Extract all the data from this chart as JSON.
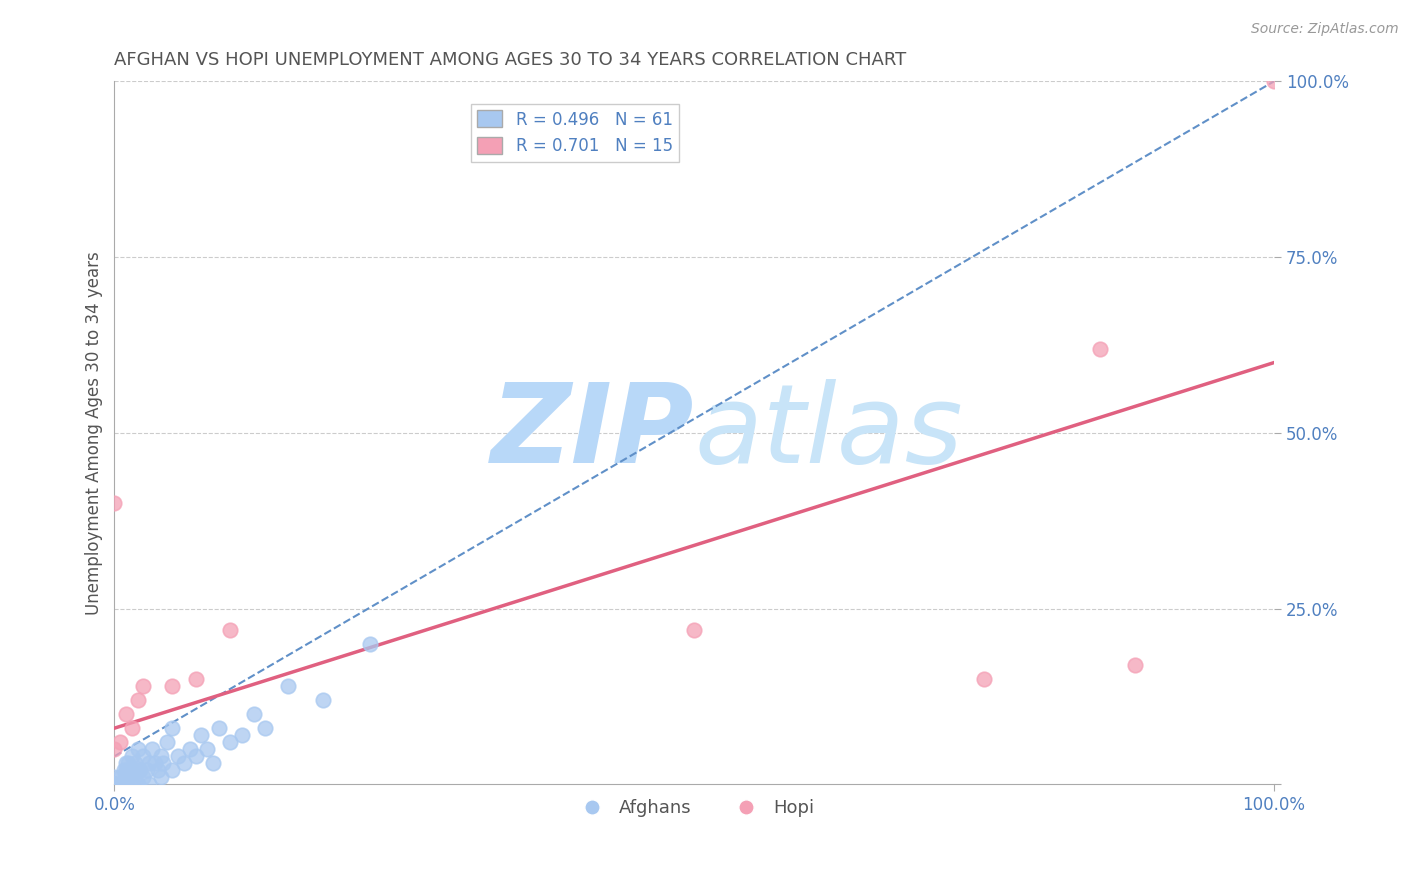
{
  "title": "AFGHAN VS HOPI UNEMPLOYMENT AMONG AGES 30 TO 34 YEARS CORRELATION CHART",
  "source": "Source: ZipAtlas.com",
  "ylabel": "Unemployment Among Ages 30 to 34 years",
  "xlim": [
    0,
    1.0
  ],
  "ylim": [
    0,
    1.0
  ],
  "xticks": [
    0.0,
    1.0
  ],
  "yticks": [
    0.0,
    0.25,
    0.5,
    0.75,
    1.0
  ],
  "xtick_labels": [
    "0.0%",
    "100.0%"
  ],
  "ytick_labels": [
    "",
    "25.0%",
    "50.0%",
    "75.0%",
    "100.0%"
  ],
  "afghan_color": "#a8c8f0",
  "hopi_color": "#f4a0b5",
  "afghan_line_color": "#6090c8",
  "hopi_line_color": "#e06080",
  "afghan_R": 0.496,
  "afghan_N": 61,
  "hopi_R": 0.701,
  "hopi_N": 15,
  "legend_label_afghan": "Afghans",
  "legend_label_hopi": "Hopi",
  "background_color": "#ffffff",
  "grid_color": "#cccccc",
  "title_color": "#555555",
  "axis_label_color": "#555555",
  "tick_label_color": "#5080c0",
  "watermark_zip_color": "#b8d8f8",
  "watermark_atlas_color": "#c8e4f8",
  "afghan_x": [
    0.0,
    0.0,
    0.0,
    0.0,
    0.0,
    0.0,
    0.0,
    0.0,
    0.0,
    0.0,
    0.0,
    0.0,
    0.0,
    0.005,
    0.005,
    0.005,
    0.008,
    0.008,
    0.01,
    0.01,
    0.01,
    0.012,
    0.012,
    0.015,
    0.015,
    0.015,
    0.018,
    0.018,
    0.02,
    0.02,
    0.02,
    0.022,
    0.025,
    0.025,
    0.028,
    0.03,
    0.03,
    0.032,
    0.035,
    0.038,
    0.04,
    0.04,
    0.042,
    0.045,
    0.05,
    0.05,
    0.055,
    0.06,
    0.065,
    0.07,
    0.075,
    0.08,
    0.085,
    0.09,
    0.1,
    0.11,
    0.12,
    0.13,
    0.15,
    0.18,
    0.22
  ],
  "afghan_y": [
    0.0,
    0.0,
    0.0,
    0.0,
    0.0,
    0.0,
    0.0,
    0.0,
    0.0,
    0.0,
    0.0,
    0.0,
    0.01,
    0.0,
    0.0,
    0.01,
    0.0,
    0.02,
    0.01,
    0.02,
    0.03,
    0.01,
    0.03,
    0.0,
    0.02,
    0.04,
    0.01,
    0.03,
    0.0,
    0.02,
    0.05,
    0.02,
    0.01,
    0.04,
    0.02,
    0.0,
    0.03,
    0.05,
    0.03,
    0.02,
    0.01,
    0.04,
    0.03,
    0.06,
    0.02,
    0.08,
    0.04,
    0.03,
    0.05,
    0.04,
    0.07,
    0.05,
    0.03,
    0.08,
    0.06,
    0.07,
    0.1,
    0.08,
    0.14,
    0.12,
    0.2
  ],
  "hopi_x": [
    0.0,
    0.0,
    0.005,
    0.01,
    0.015,
    0.02,
    0.025,
    0.05,
    0.07,
    0.1,
    0.5,
    0.75,
    0.85,
    0.88,
    1.0
  ],
  "hopi_y": [
    0.4,
    0.05,
    0.06,
    0.1,
    0.08,
    0.12,
    0.14,
    0.14,
    0.15,
    0.22,
    0.22,
    0.15,
    0.62,
    0.17,
    1.0
  ],
  "afghan_line_x": [
    0.0,
    1.0
  ],
  "afghan_line_y": [
    0.04,
    1.0
  ],
  "hopi_line_x": [
    0.0,
    1.0
  ],
  "hopi_line_y": [
    0.08,
    0.6
  ]
}
